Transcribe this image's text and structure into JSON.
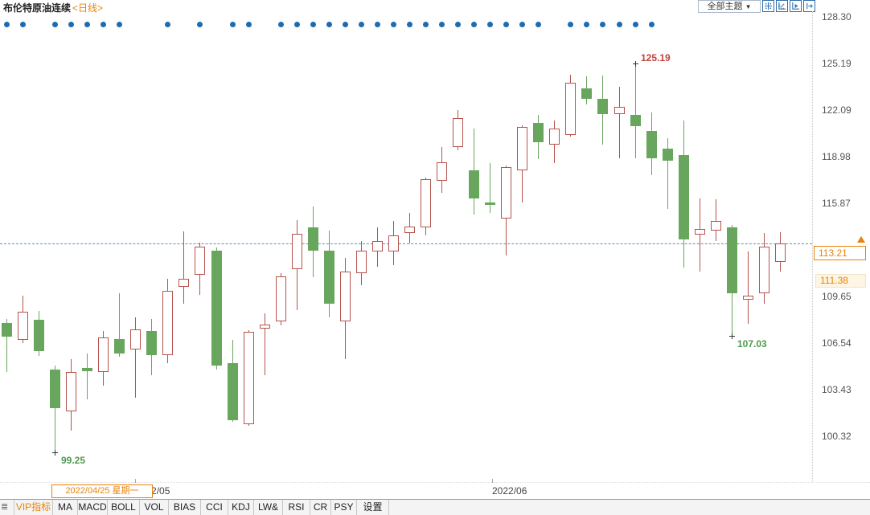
{
  "header": {
    "title": "布伦特原油连续",
    "period_tag": "<日线>",
    "theme_dropdown_label": "全部主题",
    "dropdown_arrow": "▼",
    "tool_icons": [
      "move-crosshair",
      "scale-axis",
      "play-axis",
      "export-right"
    ]
  },
  "y_axis": {
    "ticks": [
      {
        "price": 128.3,
        "label": "128.30"
      },
      {
        "price": 125.19,
        "label": "125.19"
      },
      {
        "price": 122.09,
        "label": "122.09"
      },
      {
        "price": 118.98,
        "label": "118.98"
      },
      {
        "price": 115.87,
        "label": "115.87"
      },
      {
        "price": 109.65,
        "label": "109.65"
      },
      {
        "price": 106.54,
        "label": "106.54"
      },
      {
        "price": 103.43,
        "label": "103.43"
      },
      {
        "price": 100.32,
        "label": "100.32"
      }
    ]
  },
  "x_axis": {
    "month_labels": [
      {
        "label": "2022/05",
        "x": 168
      },
      {
        "label": "2022/06",
        "x": 612
      }
    ],
    "crosshair_tooltip": {
      "label": "2022/04/25 星期一"
    }
  },
  "bottom_toolbar": {
    "panel_handle": "≣",
    "items": [
      "VIP指标",
      "MA",
      "MACD",
      "BOLL",
      "VOL",
      "BIAS",
      "CCI",
      "KDJ",
      "LW&",
      "RSI",
      "CR",
      "PSY",
      "设置"
    ]
  },
  "colors": {
    "up": "#b5534d",
    "down": "#68a55d",
    "event_dot": "#1b6cb0",
    "accent_orange": "#e8820c",
    "dashed_line": "#4f93ce",
    "high_label": "#c3423c",
    "low_label": "#4e9a4e"
  },
  "chart_data": {
    "type": "candlestick",
    "title": "布伦特原油连续",
    "period": "日线",
    "y_range": [
      99.25,
      128.3
    ],
    "last_price": {
      "price": 113.21,
      "label": "113.21"
    },
    "ref_price": {
      "price": 111.38,
      "label": "111.38"
    },
    "markers": {
      "high": {
        "candle_index": 39,
        "price": 125.19,
        "label": "125.19"
      },
      "low": {
        "candle_index": 3,
        "price": 99.25,
        "label": "99.25"
      },
      "swing_low": {
        "candle_index": 45,
        "price": 107.03,
        "label": "107.03"
      }
    },
    "dot_indices": [
      0,
      1,
      3,
      4,
      5,
      6,
      7,
      10,
      12,
      14,
      15,
      17,
      18,
      19,
      20,
      21,
      22,
      23,
      24,
      25,
      26,
      27,
      28,
      29,
      30,
      31,
      32,
      33,
      35,
      36,
      37,
      38,
      39,
      40
    ],
    "ohlc_order": [
      "open",
      "high",
      "low",
      "close"
    ],
    "candles": [
      [
        107.88,
        108.15,
        104.61,
        106.97
      ],
      [
        106.75,
        109.7,
        106.54,
        108.63
      ],
      [
        108.09,
        108.68,
        105.68,
        106.0
      ],
      [
        104.77,
        105.04,
        99.25,
        102.2
      ],
      [
        101.98,
        105.47,
        100.69,
        104.61
      ],
      [
        104.88,
        105.84,
        102.79,
        104.66
      ],
      [
        104.61,
        107.34,
        103.7,
        106.91
      ],
      [
        106.8,
        109.86,
        105.62,
        105.84
      ],
      [
        106.11,
        108.25,
        102.9,
        107.45
      ],
      [
        107.34,
        108.15,
        104.39,
        105.73
      ],
      [
        105.73,
        110.83,
        105.2,
        110.02
      ],
      [
        110.29,
        113.99,
        109.16,
        110.83
      ],
      [
        111.09,
        113.24,
        109.75,
        112.97
      ],
      [
        112.7,
        112.91,
        104.77,
        105.04
      ],
      [
        105.2,
        106.75,
        101.29,
        101.39
      ],
      [
        101.13,
        107.4,
        101.02,
        107.29
      ],
      [
        107.5,
        108.52,
        104.39,
        107.77
      ],
      [
        107.98,
        111.2,
        107.72,
        110.99
      ],
      [
        111.47,
        114.74,
        108.74,
        113.83
      ],
      [
        114.26,
        115.65,
        110.93,
        112.7
      ],
      [
        112.7,
        114.04,
        108.25,
        109.16
      ],
      [
        107.98,
        112.22,
        105.47,
        111.31
      ],
      [
        111.2,
        113.35,
        110.4,
        112.7
      ],
      [
        112.65,
        114.26,
        111.63,
        113.35
      ],
      [
        112.65,
        114.68,
        111.74,
        113.72
      ],
      [
        113.88,
        115.22,
        113.18,
        114.31
      ],
      [
        114.26,
        117.57,
        113.72,
        117.47
      ],
      [
        117.36,
        119.62,
        116.56,
        118.6
      ],
      [
        119.62,
        122.08,
        119.4,
        121.55
      ],
      [
        118.06,
        120.85,
        115.11,
        116.18
      ],
      [
        115.92,
        118.54,
        115.22,
        115.76
      ],
      [
        114.85,
        118.38,
        112.38,
        118.28
      ],
      [
        118.06,
        121.06,
        115.92,
        120.96
      ],
      [
        121.22,
        121.76,
        118.81,
        119.94
      ],
      [
        119.78,
        121.38,
        118.54,
        120.85
      ],
      [
        120.42,
        124.44,
        120.31,
        123.9
      ],
      [
        123.53,
        124.33,
        122.46,
        122.83
      ],
      [
        122.83,
        124.39,
        119.78,
        121.81
      ],
      [
        121.81,
        123.64,
        118.87,
        122.3
      ],
      [
        121.76,
        125.19,
        118.87,
        121.01
      ],
      [
        120.69,
        121.92,
        117.74,
        118.87
      ],
      [
        119.51,
        120.21,
        115.49,
        118.71
      ],
      [
        119.08,
        121.38,
        111.58,
        113.45
      ],
      [
        113.77,
        116.18,
        111.31,
        114.15
      ],
      [
        114.04,
        116.13,
        113.35,
        114.68
      ],
      [
        114.26,
        114.42,
        107.03,
        109.86
      ],
      [
        109.43,
        112.65,
        107.82,
        109.7
      ],
      [
        109.86,
        113.88,
        109.16,
        112.97
      ],
      [
        111.95,
        113.94,
        111.31,
        113.21
      ]
    ]
  }
}
